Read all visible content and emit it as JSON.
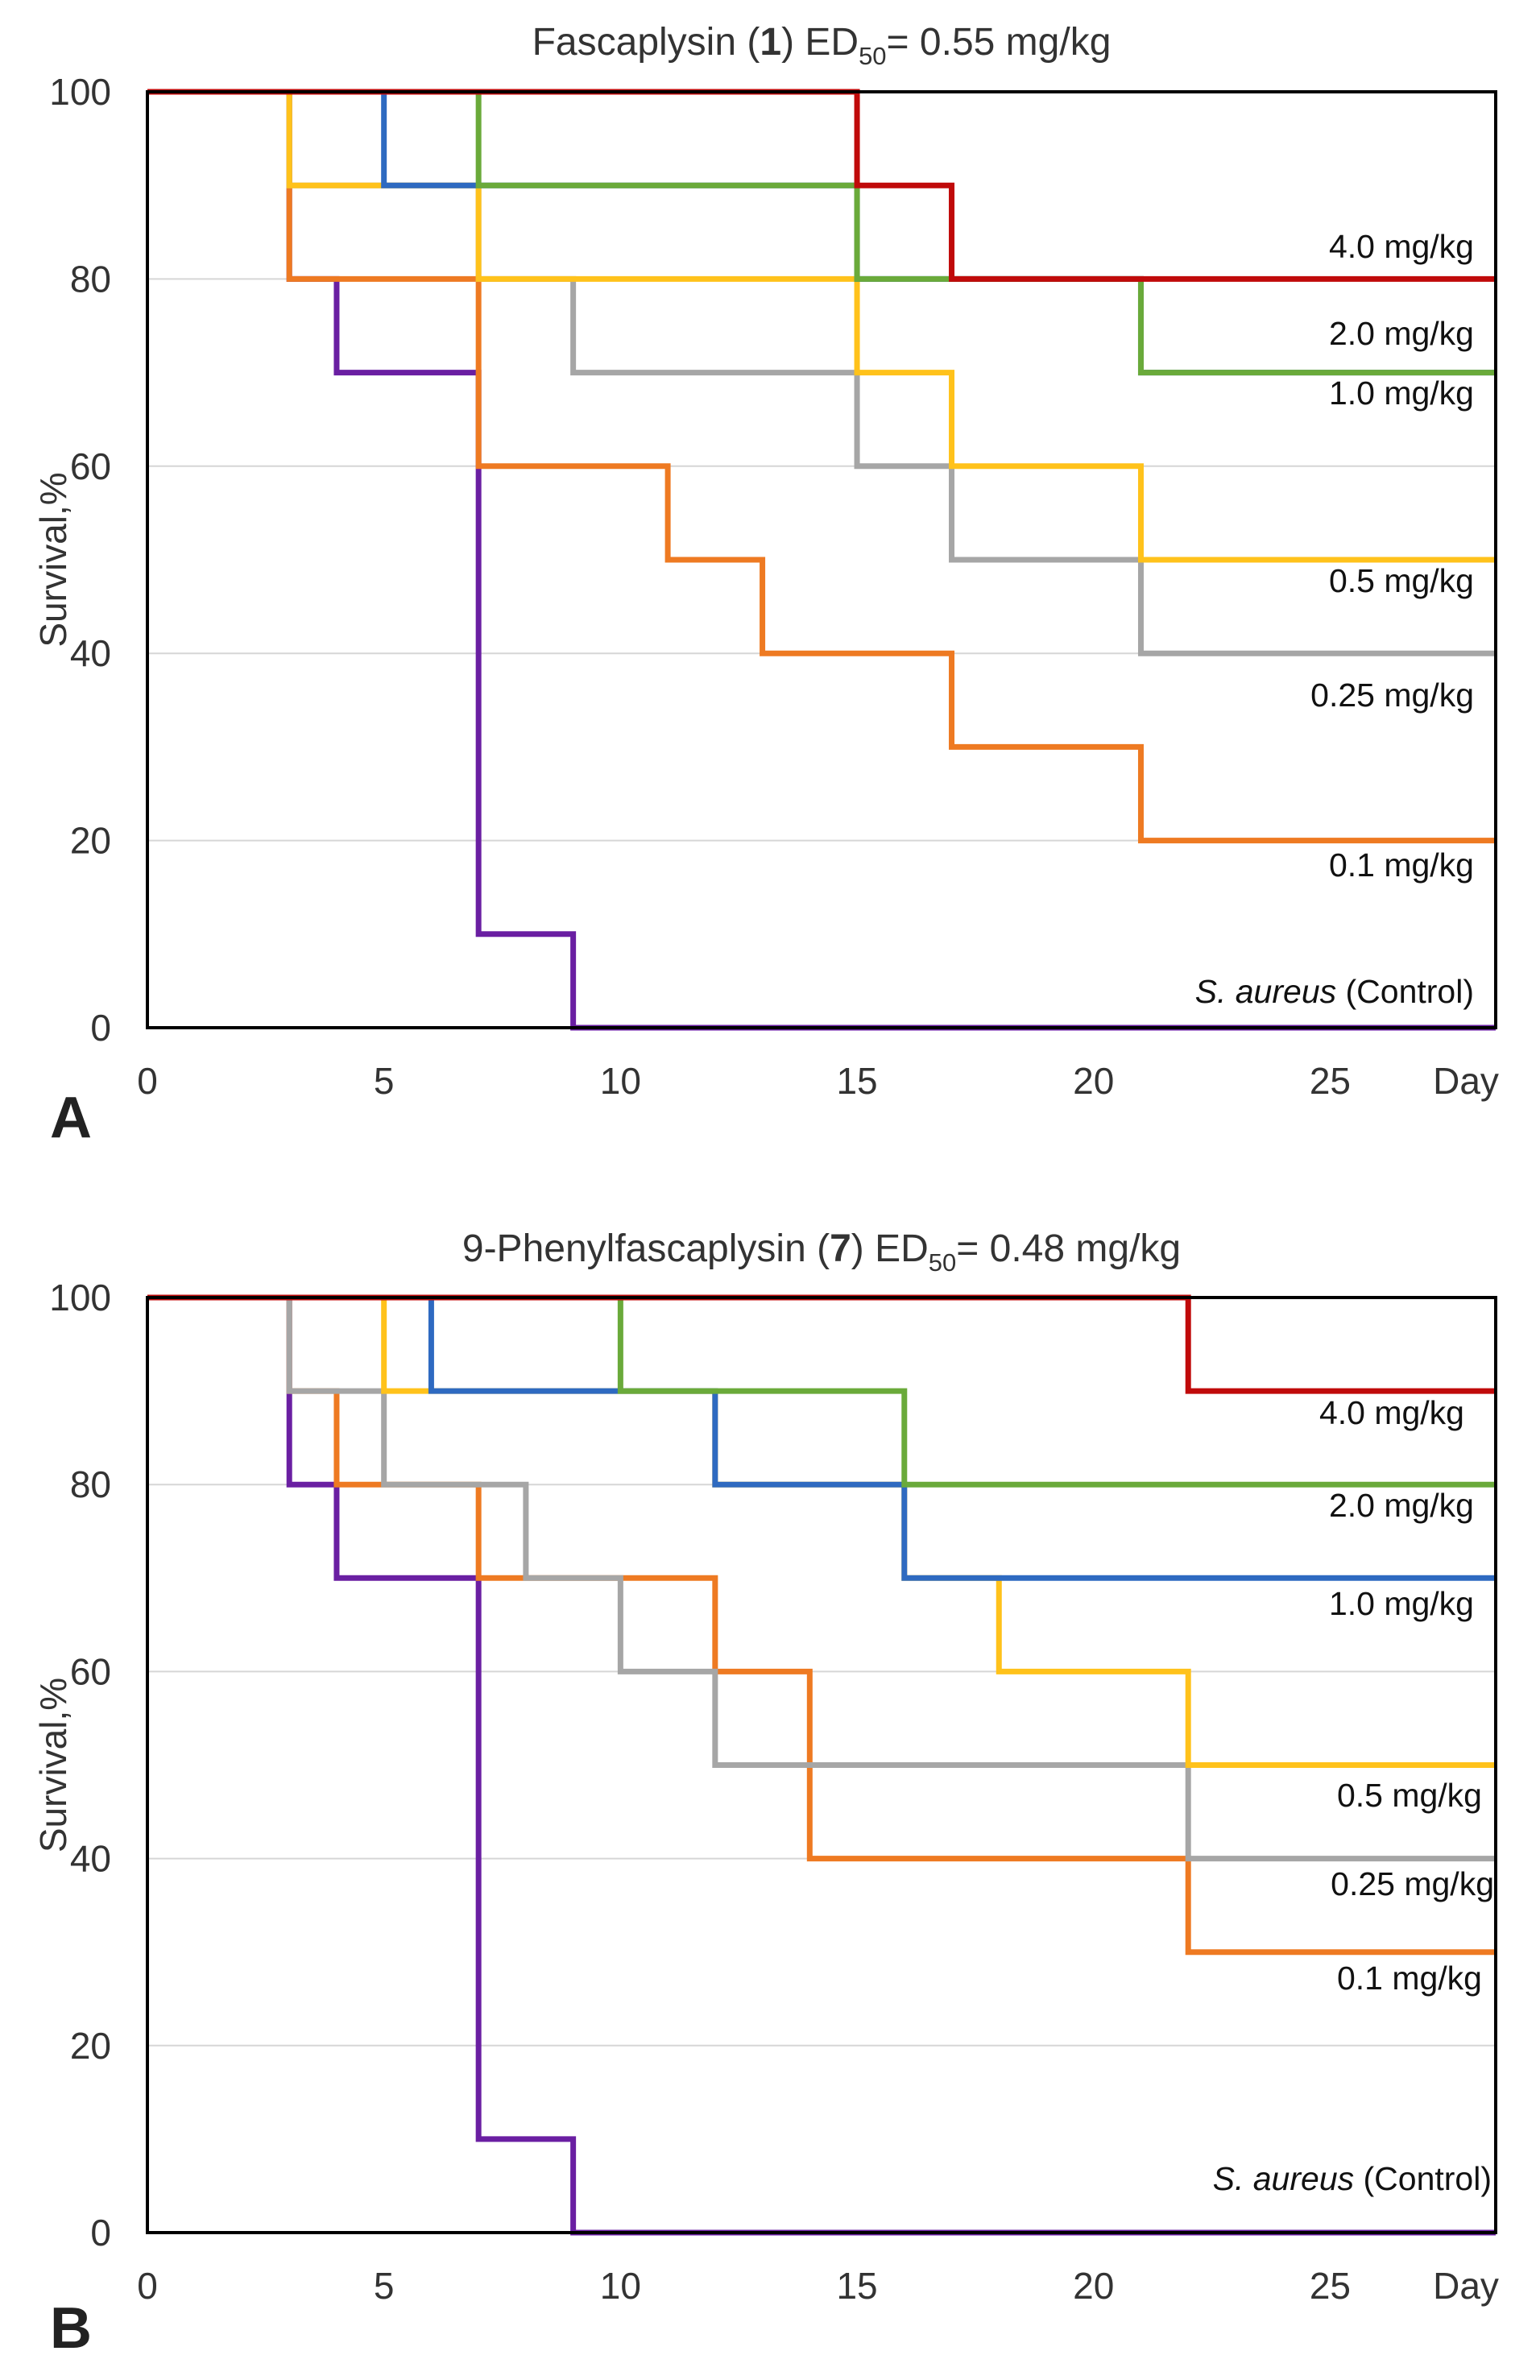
{
  "chart_data": [
    {
      "type": "line",
      "step": true,
      "panel_label": "A",
      "title": {
        "name": "Fascaplysin (",
        "compound": "1",
        "rest": ") ED",
        "sub": "50",
        "value": "= 0.55 mg/kg"
      },
      "xlabel": "Day",
      "ylabel": "Survival,%",
      "xlim": [
        0,
        28.5
      ],
      "ylim": [
        0,
        100
      ],
      "x_ticks": [
        "0",
        "5",
        "10",
        "15",
        "20",
        "25"
      ],
      "y_ticks": [
        "0",
        "20",
        "40",
        "60",
        "80",
        "100"
      ],
      "grid": true,
      "series": [
        {
          "name": "S. aureus (Control)",
          "label_name": "S. aureus",
          "label_suffix": " (Control)",
          "color": "#6a1fa2",
          "x": [
            0,
            3,
            4,
            7,
            9,
            28.5
          ],
          "y": [
            100,
            80,
            70,
            10,
            0,
            0
          ]
        },
        {
          "name": "0.1 mg/kg",
          "color": "#ee7a22",
          "x": [
            0,
            3,
            7,
            11,
            13,
            17,
            21,
            28.5
          ],
          "y": [
            100,
            80,
            60,
            50,
            40,
            30,
            20,
            20
          ]
        },
        {
          "name": "0.25 mg/kg",
          "color": "#a6a6a6",
          "x": [
            0,
            3,
            7,
            9,
            15,
            17,
            21,
            28.5
          ],
          "y": [
            100,
            90,
            80,
            70,
            60,
            50,
            40,
            40
          ]
        },
        {
          "name": "0.5 mg/kg",
          "color": "#ffc21b",
          "x": [
            0,
            3,
            7,
            15,
            17,
            21,
            28.5
          ],
          "y": [
            100,
            90,
            80,
            70,
            60,
            50,
            50
          ]
        },
        {
          "name": "1.0 mg/kg",
          "color": "#2e6ac1",
          "x": [
            0,
            5,
            7,
            15,
            21,
            28.5
          ],
          "y": [
            100,
            90,
            90,
            80,
            70,
            70
          ]
        },
        {
          "name": "2.0 mg/kg",
          "color": "#6aaa3a",
          "x": [
            0,
            7,
            15,
            21,
            28.5
          ],
          "y": [
            100,
            90,
            80,
            70,
            70
          ]
        },
        {
          "name": "4.0 mg/kg",
          "color": "#c00a0a",
          "x": [
            0,
            15,
            17,
            28.5
          ],
          "y": [
            100,
            90,
            80,
            80
          ]
        }
      ]
    },
    {
      "type": "line",
      "step": true,
      "panel_label": "B",
      "title": {
        "name": "9-Phenylfascaplysin (",
        "compound": "7",
        "rest": ") ED",
        "sub": "50",
        "value": "= 0.48 mg/kg"
      },
      "xlabel": "Day",
      "ylabel": "Survival,%",
      "xlim": [
        0,
        28.5
      ],
      "ylim": [
        0,
        100
      ],
      "x_ticks": [
        "0",
        "5",
        "10",
        "15",
        "20",
        "25"
      ],
      "y_ticks": [
        "0",
        "20",
        "40",
        "60",
        "80",
        "100"
      ],
      "grid": true,
      "series": [
        {
          "name": "S. aureus (Control)",
          "label_name": "S. aureus",
          "label_suffix": " (Control)",
          "color": "#6a1fa2",
          "x": [
            0,
            3,
            4,
            7,
            9,
            28.5
          ],
          "y": [
            100,
            80,
            70,
            10,
            0,
            0
          ]
        },
        {
          "name": "0.1 mg/kg",
          "color": "#ee7a22",
          "x": [
            0,
            3,
            4,
            7,
            12,
            14,
            22,
            28.5
          ],
          "y": [
            100,
            90,
            80,
            70,
            60,
            40,
            30,
            30
          ]
        },
        {
          "name": "0.25 mg/kg",
          "color": "#a6a6a6",
          "x": [
            0,
            3,
            5,
            8,
            10,
            12,
            22,
            28.5
          ],
          "y": [
            100,
            90,
            80,
            70,
            60,
            50,
            40,
            40
          ]
        },
        {
          "name": "0.5 mg/kg",
          "color": "#ffc21b",
          "x": [
            0,
            5,
            12,
            16,
            18,
            22,
            28.5
          ],
          "y": [
            100,
            90,
            80,
            70,
            60,
            50,
            50
          ]
        },
        {
          "name": "1.0 mg/kg",
          "color": "#2e6ac1",
          "x": [
            0,
            6,
            12,
            16,
            18,
            28.5
          ],
          "y": [
            100,
            90,
            80,
            70,
            70,
            70
          ]
        },
        {
          "name": "2.0 mg/kg",
          "color": "#6aaa3a",
          "x": [
            0,
            10,
            16,
            28.5
          ],
          "y": [
            100,
            90,
            80,
            80
          ]
        },
        {
          "name": "4.0 mg/kg",
          "color": "#c00a0a",
          "x": [
            0,
            22,
            28.5
          ],
          "y": [
            100,
            90,
            90
          ]
        }
      ]
    }
  ]
}
